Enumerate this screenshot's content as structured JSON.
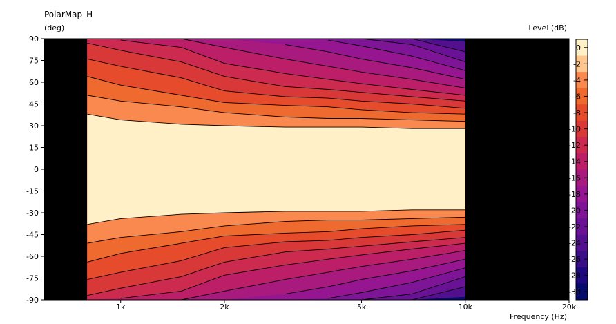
{
  "chart_data": {
    "type": "heatmap",
    "title": "PolarMap_H",
    "ylabel_unit": "(deg)",
    "xlabel": "Frequency  (Hz)",
    "colorbar_label": "Level  (dB)",
    "x_scale": "log",
    "xlim": [
      600,
      20000
    ],
    "ylim": [
      -90,
      90
    ],
    "data_x_range": [
      800,
      10000
    ],
    "x_ticks": [
      {
        "value": 1000,
        "label": "1k"
      },
      {
        "value": 2000,
        "label": "2k"
      },
      {
        "value": 5000,
        "label": "5k"
      },
      {
        "value": 10000,
        "label": "10k"
      },
      {
        "value": 20000,
        "label": "20k"
      }
    ],
    "y_ticks": [
      90,
      75,
      60,
      45,
      30,
      15,
      0,
      -15,
      -30,
      -45,
      -60,
      -75,
      -90
    ],
    "colorbar_ticks": [
      "0",
      "-2",
      "-4",
      "-6",
      "-8",
      "-10",
      "-12",
      "-14",
      "-16",
      "-18",
      "-20",
      "-22",
      "-24",
      "-26",
      "-28",
      "-30"
    ],
    "colorbar_colors": [
      "#fff0c8",
      "#ffc690",
      "#f9894e",
      "#ef6a2e",
      "#e64b2c",
      "#d93838",
      "#cc2b4f",
      "#bc1e68",
      "#a81a7e",
      "#951690",
      "#7e1596",
      "#6a1296",
      "#52108e",
      "#3a0e86",
      "#1e0a7e",
      "#050c6c"
    ],
    "contours": {
      "frequencies": [
        800,
        1000,
        1500,
        2000,
        3000,
        4000,
        5000,
        7000,
        10000
      ],
      "levels": [
        {
          "level": -2,
          "angles": [
            38,
            34,
            31,
            30,
            29,
            29,
            29,
            28,
            28
          ]
        },
        {
          "level": -4,
          "angles": [
            51,
            47,
            43,
            39,
            36,
            35,
            35,
            34,
            33
          ]
        },
        {
          "level": -6,
          "angles": [
            64,
            58,
            51,
            46,
            44,
            43,
            41,
            39,
            38
          ]
        },
        {
          "level": -8,
          "angles": [
            76,
            71,
            63,
            54,
            50,
            49,
            47,
            45,
            42
          ]
        },
        {
          "level": -10,
          "angles": [
            87,
            82,
            74,
            64,
            57,
            55,
            53,
            50,
            47
          ]
        },
        {
          "level": -12,
          "angles": [
            null,
            89,
            84,
            73,
            66,
            62,
            59,
            55,
            51
          ]
        },
        {
          "level": -14,
          "angles": [
            null,
            null,
            90,
            84,
            76,
            71,
            67,
            62,
            56
          ]
        },
        {
          "level": -16,
          "angles": [
            null,
            null,
            null,
            null,
            86,
            81,
            76,
            70,
            62
          ]
        },
        {
          "level": -18,
          "angles": [
            null,
            null,
            null,
            null,
            null,
            89,
            85,
            78,
            68
          ]
        },
        {
          "level": -20,
          "angles": [
            null,
            null,
            null,
            null,
            null,
            null,
            90,
            86,
            74
          ]
        },
        {
          "level": -22,
          "angles": [
            null,
            null,
            null,
            null,
            null,
            null,
            null,
            90,
            81
          ]
        },
        {
          "level": -24,
          "angles": [
            null,
            null,
            null,
            null,
            null,
            null,
            null,
            null,
            88
          ]
        }
      ]
    },
    "symmetric_about_zero_deg": true,
    "outside_data_color": "#000000",
    "grid": false,
    "legend": "colorbar-right"
  }
}
